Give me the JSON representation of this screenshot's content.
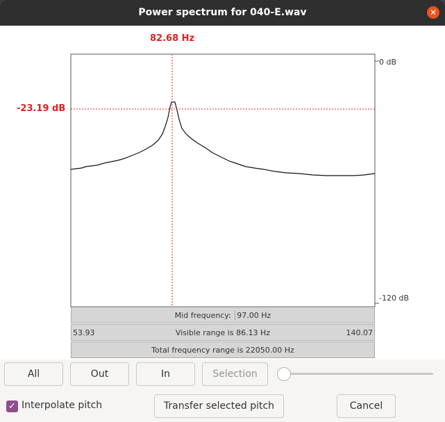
{
  "window": {
    "title": "Power spectrum for 040-E.wav"
  },
  "cursor": {
    "frequency": "82.68 Hz",
    "level": "-23.19 dB"
  },
  "axis": {
    "top_label": "0 dB",
    "bottom_label": "-120 dB"
  },
  "info": {
    "mid_frequency_label": "Mid frequency:",
    "mid_frequency_value": "97.00 Hz",
    "visible_min": "53.93",
    "visible_range": "Visible range is 86.13 Hz",
    "visible_max": "140.07",
    "total_range": "Total frequency range is 22050.00 Hz"
  },
  "buttons": {
    "all": "All",
    "out": "Out",
    "in": "In",
    "selection": "Selection",
    "transfer": "Transfer selected pitch",
    "cancel": "Cancel"
  },
  "options": {
    "interpolate_pitch": "Interpolate pitch",
    "interpolate_checked": true
  },
  "colors": {
    "accent": "#e02020",
    "checkbox": "#8f4e8b",
    "close": "#e95420"
  },
  "icons": {
    "close": "close-icon",
    "check": "checkmark-icon"
  }
}
